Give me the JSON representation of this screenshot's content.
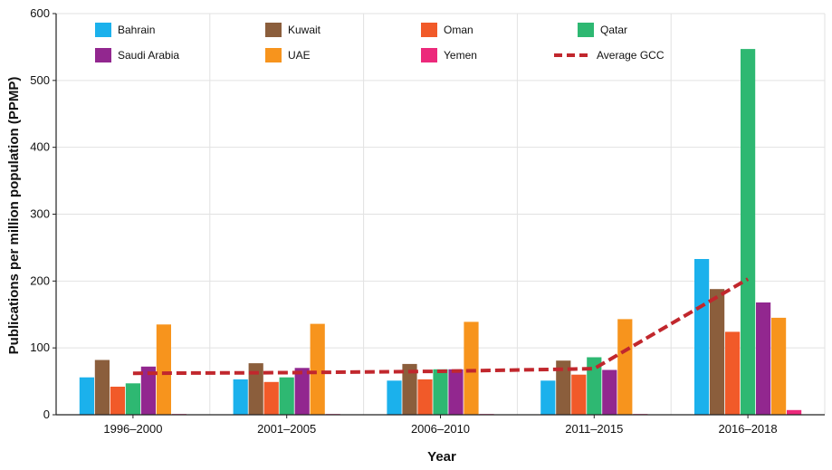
{
  "chart_data": {
    "type": "bar",
    "xlabel": "Year",
    "ylabel": "Publications per million population (PPMP)",
    "ylim": [
      0,
      600
    ],
    "yticks": [
      0,
      100,
      200,
      300,
      400,
      500,
      600
    ],
    "grid": true,
    "legend_position": "top",
    "categories": [
      "1996–2000",
      "2001–2005",
      "2006–2010",
      "2011–2015",
      "2016–2018"
    ],
    "series": [
      {
        "name": "Bahrain",
        "color": "#1bb1ec",
        "values": [
          56,
          53,
          51,
          51,
          233
        ]
      },
      {
        "name": "Kuwait",
        "color": "#8b5e3c",
        "values": [
          82,
          77,
          76,
          81,
          188
        ]
      },
      {
        "name": "Oman",
        "color": "#f15a29",
        "values": [
          42,
          49,
          53,
          60,
          124
        ]
      },
      {
        "name": "Qatar",
        "color": "#2eb872",
        "values": [
          47,
          56,
          68,
          86,
          547
        ]
      },
      {
        "name": "Saudi Arabia",
        "color": "#92278f",
        "values": [
          72,
          70,
          68,
          67,
          168
        ]
      },
      {
        "name": "UAE",
        "color": "#f7941d",
        "values": [
          135,
          136,
          139,
          143,
          145
        ]
      },
      {
        "name": "Yemen",
        "color": "#ec297b",
        "values": [
          0.5,
          1,
          1,
          1,
          7
        ]
      }
    ],
    "line_series": {
      "name": "Average GCC",
      "color": "#c1272d",
      "values": [
        62,
        63,
        65,
        69,
        203
      ]
    }
  }
}
